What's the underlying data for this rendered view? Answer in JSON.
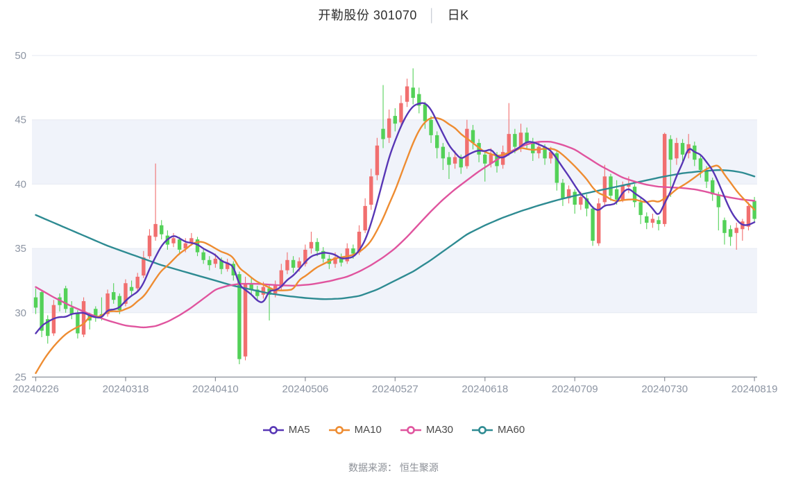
{
  "title": {
    "stock": "开勒股份 301070",
    "separator": "│",
    "period": "日K"
  },
  "legend": [
    {
      "label": "MA5",
      "color": "#5736b5"
    },
    {
      "label": "MA10",
      "color": "#ee8c31"
    },
    {
      "label": "MA30",
      "color": "#e0549e"
    },
    {
      "label": "MA60",
      "color": "#2e8b92"
    }
  ],
  "footer": {
    "source_label": "数据来源： 恒生聚源"
  },
  "chart_data": {
    "type": "candlestick",
    "title": "开勒股份 301070 日K",
    "ylim": [
      25,
      50
    ],
    "y_axis": {
      "min": 25,
      "max": 50,
      "ticks": [
        25,
        30,
        35,
        40,
        45,
        50
      ]
    },
    "x_axis": {
      "tick_labels": [
        "20240226",
        "20240318",
        "20240410",
        "20240506",
        "20240527",
        "20240618",
        "20240709",
        "20240730",
        "20240819"
      ],
      "tick_day_indices": [
        0,
        15,
        30,
        45,
        60,
        75,
        90,
        105,
        120
      ]
    },
    "shaded_bands": [
      [
        30,
        35
      ],
      [
        40,
        45
      ]
    ],
    "grid": true,
    "legend_position": "bottom",
    "colors": {
      "up": "#f16f6f",
      "down": "#53d158",
      "ma5": "#5736b5",
      "ma10": "#ee8c31",
      "ma30": "#e0549e",
      "ma60": "#2e8b92",
      "band": "#f0f3fa",
      "gridline": "#e6eaf2",
      "axis": "#8a8f98",
      "axis_text": "#8d95a3"
    },
    "candles_format": [
      "open",
      "close",
      "low",
      "high"
    ],
    "candles": [
      [
        31.2,
        30.4,
        29.9,
        31.9
      ],
      [
        31.6,
        28.6,
        28.1,
        31.8
      ],
      [
        29.5,
        28.2,
        27.6,
        29.8
      ],
      [
        28.4,
        30.6,
        28.2,
        31.0
      ],
      [
        31.2,
        30.6,
        30.1,
        31.5
      ],
      [
        31.9,
        30.3,
        30.0,
        32.1
      ],
      [
        30.4,
        29.9,
        29.5,
        30.9
      ],
      [
        30.0,
        28.4,
        28.0,
        30.2
      ],
      [
        28.3,
        30.9,
        28.1,
        31.2
      ],
      [
        29.8,
        29.4,
        28.7,
        30.0
      ],
      [
        30.3,
        29.6,
        29.3,
        30.5
      ],
      [
        29.9,
        29.7,
        29.4,
        31.2
      ],
      [
        29.9,
        31.5,
        29.7,
        31.8
      ],
      [
        31.6,
        31.0,
        30.7,
        32.3
      ],
      [
        31.3,
        30.2,
        29.9,
        31.5
      ],
      [
        30.7,
        32.3,
        30.5,
        32.6
      ],
      [
        32.0,
        31.7,
        31.3,
        32.5
      ],
      [
        31.9,
        32.8,
        31.7,
        33.1
      ],
      [
        32.9,
        34.3,
        32.7,
        34.8
      ],
      [
        34.4,
        36.0,
        34.2,
        36.5
      ],
      [
        35.9,
        36.9,
        35.6,
        41.6
      ],
      [
        36.8,
        36.1,
        35.7,
        37.2
      ],
      [
        36.0,
        35.3,
        34.9,
        36.4
      ],
      [
        35.4,
        35.8,
        35.1,
        36.2
      ],
      [
        35.7,
        34.9,
        34.5,
        35.9
      ],
      [
        35.0,
        35.4,
        34.7,
        35.8
      ],
      [
        35.4,
        35.8,
        35.2,
        36.2
      ],
      [
        35.7,
        34.7,
        34.4,
        35.9
      ],
      [
        34.7,
        34.1,
        33.8,
        35.0
      ],
      [
        34.1,
        33.7,
        33.3,
        34.4
      ],
      [
        33.8,
        34.2,
        33.5,
        34.6
      ],
      [
        34.1,
        33.4,
        33.0,
        34.3
      ],
      [
        33.4,
        33.9,
        33.2,
        34.2
      ],
      [
        33.8,
        32.9,
        32.5,
        34.0
      ],
      [
        33.0,
        26.4,
        26.0,
        33.2
      ],
      [
        26.6,
        32.2,
        26.3,
        32.8
      ],
      [
        32.3,
        31.8,
        31.4,
        32.7
      ],
      [
        31.8,
        31.3,
        30.9,
        32.1
      ],
      [
        31.4,
        32.0,
        31.1,
        32.4
      ],
      [
        31.9,
        31.4,
        29.4,
        32.2
      ],
      [
        31.5,
        32.1,
        31.2,
        32.5
      ],
      [
        32.0,
        33.3,
        31.8,
        33.8
      ],
      [
        33.3,
        34.1,
        33.0,
        34.7
      ],
      [
        34.1,
        33.5,
        33.1,
        34.4
      ],
      [
        33.5,
        34.0,
        33.2,
        34.3
      ],
      [
        33.8,
        34.9,
        33.6,
        35.3
      ],
      [
        35.0,
        35.5,
        34.6,
        36.3
      ],
      [
        35.5,
        34.8,
        34.4,
        35.8
      ],
      [
        34.8,
        34.2,
        33.9,
        35.1
      ],
      [
        34.2,
        33.8,
        33.4,
        34.5
      ],
      [
        33.8,
        34.3,
        33.5,
        34.7
      ],
      [
        34.3,
        33.9,
        33.6,
        34.6
      ],
      [
        34.0,
        35.0,
        33.8,
        35.4
      ],
      [
        35.0,
        34.6,
        34.2,
        35.3
      ],
      [
        34.7,
        36.3,
        34.5,
        36.8
      ],
      [
        36.4,
        38.3,
        36.2,
        38.9
      ],
      [
        38.4,
        40.6,
        38.0,
        41.2
      ],
      [
        40.7,
        43.0,
        40.3,
        43.6
      ],
      [
        44.3,
        43.5,
        42.8,
        47.7
      ],
      [
        43.6,
        45.1,
        43.2,
        45.8
      ],
      [
        45.3,
        44.7,
        44.1,
        45.9
      ],
      [
        44.8,
        46.3,
        44.4,
        46.9
      ],
      [
        46.4,
        47.6,
        46.0,
        48.2
      ],
      [
        47.5,
        46.7,
        46.2,
        49.0
      ],
      [
        47.0,
        46.1,
        45.5,
        47.5
      ],
      [
        46.2,
        44.9,
        44.3,
        46.4
      ],
      [
        45.0,
        43.8,
        43.2,
        45.3
      ],
      [
        43.8,
        42.8,
        42.0,
        44.1
      ],
      [
        42.9,
        42.0,
        41.1,
        43.2
      ],
      [
        42.1,
        41.5,
        40.4,
        42.5
      ],
      [
        41.6,
        42.1,
        41.2,
        42.6
      ],
      [
        42.0,
        41.3,
        40.8,
        42.3
      ],
      [
        41.4,
        44.3,
        41.2,
        45.0
      ],
      [
        44.2,
        43.2,
        42.7,
        44.6
      ],
      [
        43.2,
        42.3,
        41.7,
        43.5
      ],
      [
        42.3,
        41.6,
        40.2,
        42.6
      ],
      [
        41.6,
        42.3,
        41.3,
        42.8
      ],
      [
        42.2,
        41.4,
        40.9,
        42.5
      ],
      [
        41.5,
        42.5,
        41.2,
        43.0
      ],
      [
        42.5,
        43.9,
        42.2,
        46.3
      ],
      [
        43.9,
        42.9,
        42.4,
        44.3
      ],
      [
        42.9,
        44.0,
        42.5,
        44.7
      ],
      [
        44.0,
        43.2,
        42.7,
        44.4
      ],
      [
        43.3,
        42.4,
        41.8,
        43.6
      ],
      [
        42.4,
        42.9,
        42.0,
        43.3
      ],
      [
        42.9,
        42.0,
        41.5,
        43.1
      ],
      [
        42.0,
        42.5,
        41.6,
        42.9
      ],
      [
        42.4,
        40.1,
        39.5,
        42.6
      ],
      [
        40.1,
        38.9,
        38.3,
        40.4
      ],
      [
        38.9,
        39.6,
        38.5,
        39.9
      ],
      [
        39.4,
        38.4,
        37.7,
        39.6
      ],
      [
        38.4,
        39.0,
        38.0,
        39.4
      ],
      [
        38.9,
        38.1,
        37.5,
        39.2
      ],
      [
        38.1,
        35.6,
        35.2,
        38.3
      ],
      [
        35.4,
        38.5,
        35.2,
        38.9
      ],
      [
        38.6,
        40.6,
        38.3,
        41.5
      ],
      [
        40.6,
        39.1,
        38.7,
        40.8
      ],
      [
        39.6,
        38.8,
        38.4,
        40.3
      ],
      [
        38.8,
        39.9,
        38.6,
        40.2
      ],
      [
        39.8,
        40.0,
        39.3,
        40.6
      ],
      [
        39.8,
        38.6,
        38.2,
        40.0
      ],
      [
        38.6,
        37.6,
        36.9,
        38.9
      ],
      [
        37.5,
        37.0,
        36.5,
        37.8
      ],
      [
        37.0,
        37.3,
        36.6,
        37.7
      ],
      [
        37.2,
        36.9,
        36.4,
        37.5
      ],
      [
        36.9,
        43.9,
        36.7,
        44.0
      ],
      [
        43.5,
        41.9,
        39.0,
        43.8
      ],
      [
        42.0,
        43.2,
        41.5,
        43.6
      ],
      [
        43.2,
        42.3,
        41.8,
        43.5
      ],
      [
        42.4,
        43.1,
        42.0,
        43.9
      ],
      [
        43.0,
        41.9,
        41.4,
        43.3
      ],
      [
        42.0,
        41.1,
        40.5,
        42.3
      ],
      [
        41.1,
        40.2,
        39.7,
        41.4
      ],
      [
        40.3,
        39.2,
        38.7,
        40.5
      ],
      [
        39.2,
        38.2,
        36.4,
        39.4
      ],
      [
        37.2,
        36.2,
        35.3,
        37.4
      ],
      [
        36.5,
        35.9,
        35.2,
        36.8
      ],
      [
        36.2,
        36.6,
        34.9,
        37.0
      ],
      [
        36.5,
        37.1,
        35.6,
        37.3
      ],
      [
        36.7,
        38.3,
        36.4,
        38.6
      ],
      [
        38.7,
        37.3,
        37.0,
        39.0
      ]
    ],
    "series": [
      {
        "name": "MA5",
        "derived": "sma",
        "window": 5,
        "seed": [
          28.4,
          29.0,
          29.3,
          29.55
        ]
      },
      {
        "name": "MA10",
        "derived": "sma",
        "window": 10,
        "seed": [
          25.3,
          26.1,
          26.8,
          27.4,
          27.9,
          28.35,
          28.65,
          28.9,
          29.1
        ]
      },
      {
        "name": "MA30",
        "anchors": [
          [
            0,
            32.0
          ],
          [
            3,
            31.2
          ],
          [
            6,
            30.5
          ],
          [
            9,
            29.9
          ],
          [
            12,
            29.4
          ],
          [
            15,
            29.0
          ],
          [
            18,
            28.85
          ],
          [
            20,
            28.95
          ],
          [
            22,
            29.3
          ],
          [
            24,
            29.8
          ],
          [
            26,
            30.4
          ],
          [
            28,
            31.1
          ],
          [
            30,
            31.8
          ],
          [
            32,
            32.1
          ],
          [
            34,
            32.25
          ],
          [
            37,
            32.25
          ],
          [
            40,
            32.15
          ],
          [
            43,
            32.1
          ],
          [
            46,
            32.2
          ],
          [
            49,
            32.45
          ],
          [
            52,
            32.8
          ],
          [
            54,
            33.2
          ],
          [
            56,
            33.7
          ],
          [
            58,
            34.3
          ],
          [
            60,
            35.0
          ],
          [
            62,
            35.9
          ],
          [
            64,
            36.9
          ],
          [
            66,
            37.9
          ],
          [
            68,
            38.8
          ],
          [
            70,
            39.6
          ],
          [
            72,
            40.3
          ],
          [
            74,
            41.0
          ],
          [
            76,
            41.6
          ],
          [
            78,
            42.2
          ],
          [
            80,
            42.7
          ],
          [
            82,
            43.1
          ],
          [
            84,
            43.3
          ],
          [
            86,
            43.3
          ],
          [
            88,
            43.05
          ],
          [
            90,
            42.7
          ],
          [
            92,
            42.1
          ],
          [
            94,
            41.5
          ],
          [
            96,
            41.0
          ],
          [
            98,
            40.5
          ],
          [
            100,
            40.2
          ],
          [
            102,
            39.95
          ],
          [
            104,
            39.8
          ],
          [
            106,
            39.75
          ],
          [
            108,
            39.7
          ],
          [
            110,
            39.6
          ],
          [
            112,
            39.4
          ],
          [
            114,
            39.15
          ],
          [
            116,
            38.95
          ],
          [
            118,
            38.8
          ],
          [
            120,
            38.7
          ]
        ]
      },
      {
        "name": "MA60",
        "anchors": [
          [
            0,
            37.6
          ],
          [
            3,
            37.0
          ],
          [
            6,
            36.4
          ],
          [
            9,
            35.8
          ],
          [
            12,
            35.2
          ],
          [
            15,
            34.7
          ],
          [
            18,
            34.2
          ],
          [
            21,
            33.7
          ],
          [
            24,
            33.3
          ],
          [
            27,
            32.9
          ],
          [
            30,
            32.5
          ],
          [
            33,
            32.1
          ],
          [
            36,
            31.8
          ],
          [
            39,
            31.5
          ],
          [
            42,
            31.3
          ],
          [
            45,
            31.15
          ],
          [
            48,
            31.05
          ],
          [
            51,
            31.1
          ],
          [
            54,
            31.3
          ],
          [
            57,
            31.8
          ],
          [
            60,
            32.5
          ],
          [
            63,
            33.2
          ],
          [
            66,
            34.1
          ],
          [
            69,
            35.1
          ],
          [
            72,
            36.1
          ],
          [
            75,
            36.8
          ],
          [
            78,
            37.4
          ],
          [
            81,
            37.9
          ],
          [
            84,
            38.35
          ],
          [
            87,
            38.75
          ],
          [
            90,
            39.1
          ],
          [
            93,
            39.4
          ],
          [
            96,
            39.7
          ],
          [
            99,
            40.0
          ],
          [
            102,
            40.3
          ],
          [
            105,
            40.6
          ],
          [
            108,
            40.85
          ],
          [
            111,
            41.0
          ],
          [
            114,
            41.1
          ],
          [
            116,
            41.05
          ],
          [
            118,
            40.9
          ],
          [
            120,
            40.6
          ]
        ]
      }
    ]
  }
}
